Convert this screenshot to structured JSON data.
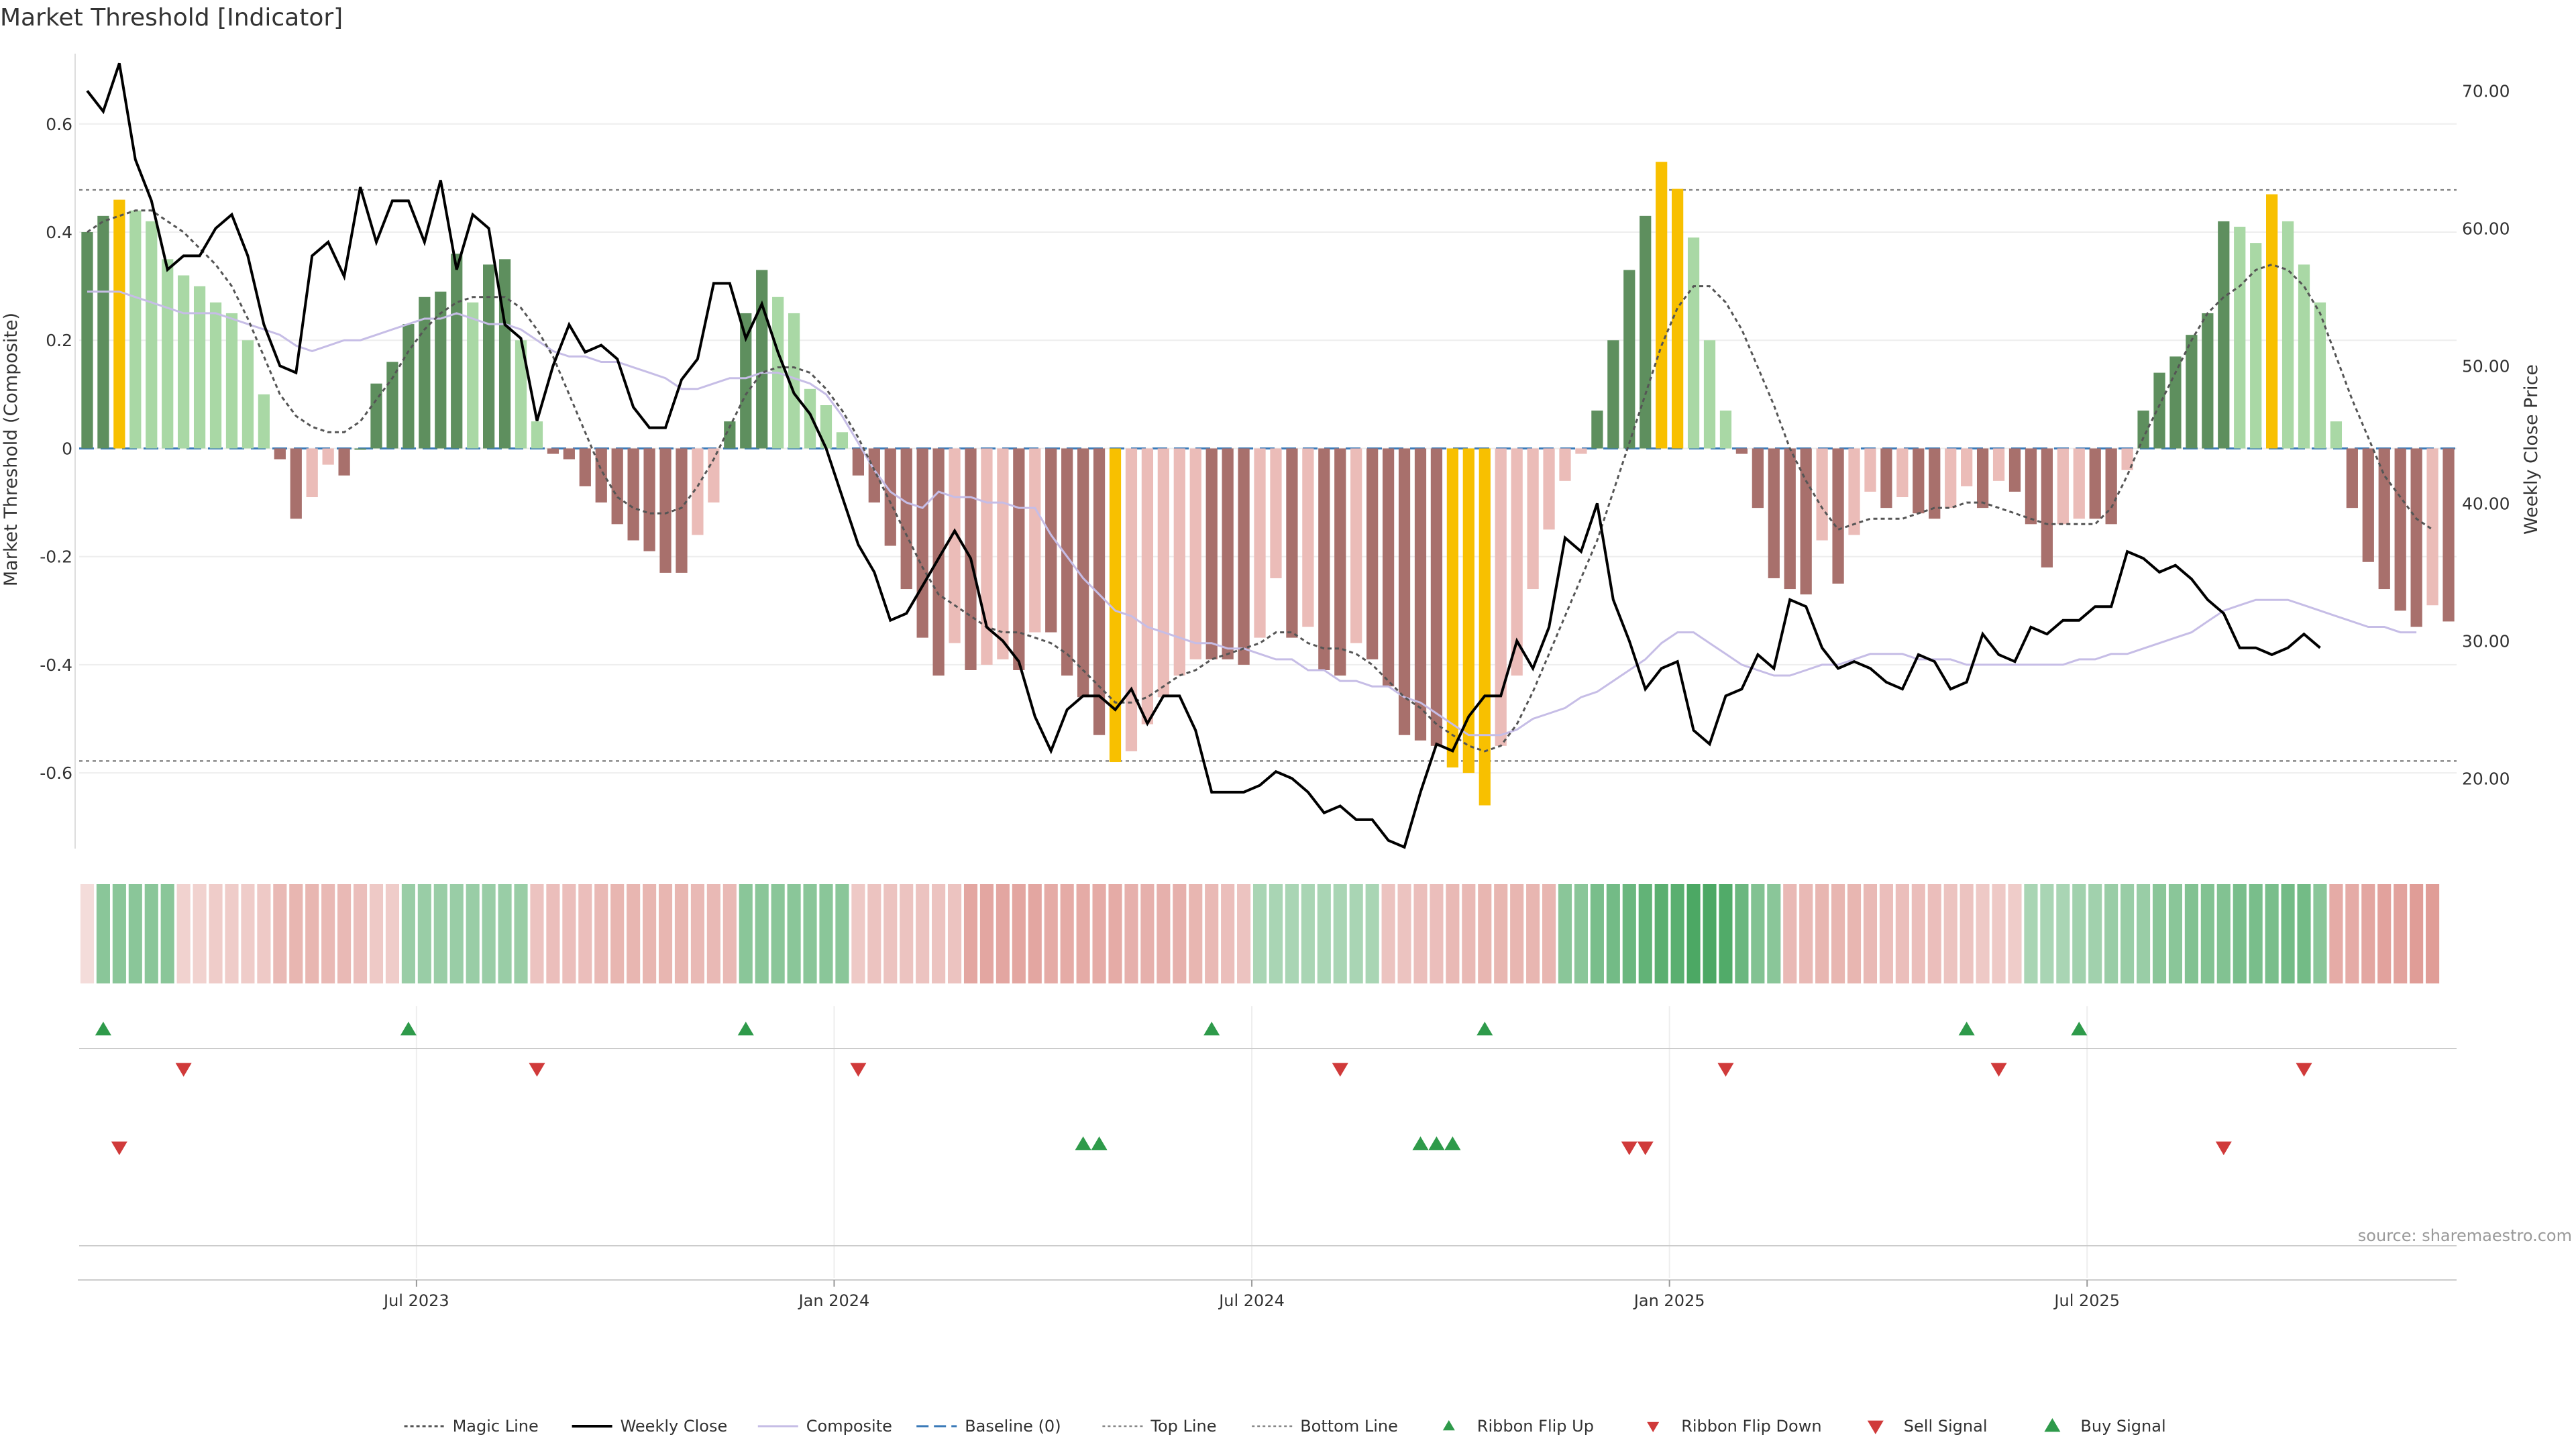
{
  "chart_data": {
    "type": "bar",
    "title": "Market Threshold [Indicator]",
    "ylabel_left": "Market Threshold (Composite)",
    "ylabel_right": "Weekly Close Price",
    "ylim_left": [
      -0.74,
      0.73
    ],
    "ylim_right": [
      14.9,
      72.7
    ],
    "left_ticks": [
      "0.6",
      "0.4",
      "0.2",
      "0",
      "-0.2",
      "-0.4",
      "-0.6"
    ],
    "left_tick_values": [
      0.6,
      0.4,
      0.2,
      0,
      -0.2,
      -0.4,
      -0.6
    ],
    "right_ticks": [
      "70.00",
      "60.00",
      "50.00",
      "40.00",
      "30.00",
      "20.00"
    ],
    "right_tick_values": [
      70,
      60,
      50,
      40,
      30,
      20
    ],
    "top_line": 0.478,
    "bottom_line": -0.578,
    "x_ticks": [
      {
        "label": "Jul 2023",
        "week": 21
      },
      {
        "label": "Jan 2024",
        "week": 47
      },
      {
        "label": "Jul 2024",
        "week": 73
      },
      {
        "label": "Jan 2025",
        "week": 99
      },
      {
        "label": "Jul 2025",
        "week": 125
      }
    ],
    "composite_bars": [
      0.4,
      0.43,
      0.46,
      0.44,
      0.42,
      0.35,
      0.32,
      0.3,
      0.27,
      0.25,
      0.2,
      0.1,
      -0.02,
      -0.13,
      -0.09,
      -0.03,
      -0.05,
      0,
      0.12,
      0.16,
      0.23,
      0.28,
      0.29,
      0.36,
      0.27,
      0.34,
      0.35,
      0.2,
      0.05,
      -0.01,
      -0.02,
      -0.07,
      -0.1,
      -0.14,
      -0.17,
      -0.19,
      -0.23,
      -0.23,
      -0.16,
      -0.1,
      0.05,
      0.25,
      0.33,
      0.28,
      0.25,
      0.11,
      0.08,
      0.03,
      -0.05,
      -0.1,
      -0.18,
      -0.26,
      -0.35,
      -0.42,
      -0.36,
      -0.41,
      -0.4,
      -0.39,
      -0.41,
      -0.34,
      -0.34,
      -0.42,
      -0.46,
      -0.53,
      -0.58,
      -0.56,
      -0.51,
      -0.46,
      -0.42,
      -0.39,
      -0.39,
      -0.39,
      -0.4,
      -0.35,
      -0.24,
      -0.35,
      -0.33,
      -0.41,
      -0.42,
      -0.36,
      -0.39,
      -0.44,
      -0.53,
      -0.54,
      -0.55,
      -0.59,
      -0.6,
      -0.66,
      -0.55,
      -0.42,
      -0.26,
      -0.15,
      -0.06,
      -0.01,
      0.07,
      0.2,
      0.33,
      0.43,
      0.53,
      0.48,
      0.39,
      0.2,
      0.07,
      -0.01,
      -0.11,
      -0.24,
      -0.26,
      -0.27,
      -0.17,
      -0.25,
      -0.16,
      -0.08,
      -0.11,
      -0.09,
      -0.12,
      -0.13,
      -0.11,
      -0.07,
      -0.11,
      -0.06,
      -0.08,
      -0.14,
      -0.22,
      -0.14,
      -0.13,
      -0.13,
      -0.14,
      -0.04,
      0.07,
      0.14,
      0.17,
      0.21,
      0.25,
      0.42,
      0.41,
      0.38,
      0.47,
      0.42,
      0.34,
      0.27,
      0.05,
      -0.11,
      -0.21,
      -0.26,
      -0.3,
      -0.33,
      -0.29,
      -0.32
    ],
    "composite_line": [
      0.29,
      0.29,
      0.29,
      0.28,
      0.27,
      0.26,
      0.25,
      0.25,
      0.25,
      0.24,
      0.23,
      0.22,
      0.21,
      0.19,
      0.18,
      0.19,
      0.2,
      0.2,
      0.21,
      0.22,
      0.23,
      0.24,
      0.24,
      0.25,
      0.24,
      0.23,
      0.23,
      0.22,
      0.2,
      0.18,
      0.17,
      0.17,
      0.16,
      0.16,
      0.15,
      0.14,
      0.13,
      0.11,
      0.11,
      0.12,
      0.13,
      0.13,
      0.14,
      0.14,
      0.13,
      0.12,
      0.1,
      0.06,
      0.01,
      -0.04,
      -0.08,
      -0.1,
      -0.11,
      -0.08,
      -0.09,
      -0.09,
      -0.1,
      -0.1,
      -0.11,
      -0.11,
      -0.16,
      -0.2,
      -0.24,
      -0.27,
      -0.3,
      -0.31,
      -0.33,
      -0.34,
      -0.35,
      -0.36,
      -0.36,
      -0.37,
      -0.37,
      -0.38,
      -0.39,
      -0.39,
      -0.41,
      -0.41,
      -0.43,
      -0.43,
      -0.44,
      -0.44,
      -0.46,
      -0.47,
      -0.49,
      -0.51,
      -0.53,
      -0.53,
      -0.53,
      -0.52,
      -0.5,
      -0.49,
      -0.48,
      -0.46,
      -0.45,
      -0.43,
      -0.41,
      -0.39,
      -0.36,
      -0.34,
      -0.34,
      -0.36,
      -0.38,
      -0.4,
      -0.41,
      -0.42,
      -0.42,
      -0.41,
      -0.4,
      -0.4,
      -0.39,
      -0.38,
      -0.38,
      -0.38,
      -0.39,
      -0.39,
      -0.39,
      -0.4,
      -0.4,
      -0.4,
      -0.4,
      -0.4,
      -0.4,
      -0.4,
      -0.39,
      -0.39,
      -0.38,
      -0.38,
      -0.37,
      -0.36,
      -0.35,
      -0.34,
      -0.32,
      -0.3,
      -0.29,
      -0.28,
      -0.28,
      -0.28,
      -0.29,
      -0.3,
      -0.31,
      -0.32,
      -0.33,
      -0.33,
      -0.34,
      -0.34
    ],
    "magic_line": [
      0.4,
      0.42,
      0.43,
      0.44,
      0.44,
      0.42,
      0.4,
      0.37,
      0.34,
      0.3,
      0.24,
      0.17,
      0.1,
      0.06,
      0.04,
      0.03,
      0.03,
      0.05,
      0.09,
      0.13,
      0.18,
      0.22,
      0.25,
      0.27,
      0.28,
      0.28,
      0.28,
      0.26,
      0.22,
      0.17,
      0.1,
      0.03,
      -0.04,
      -0.09,
      -0.11,
      -0.12,
      -0.12,
      -0.11,
      -0.07,
      -0.02,
      0.04,
      0.1,
      0.14,
      0.15,
      0.15,
      0.14,
      0.11,
      0.07,
      0.02,
      -0.04,
      -0.1,
      -0.16,
      -0.22,
      -0.27,
      -0.29,
      -0.31,
      -0.33,
      -0.34,
      -0.34,
      -0.35,
      -0.36,
      -0.38,
      -0.41,
      -0.44,
      -0.47,
      -0.47,
      -0.46,
      -0.44,
      -0.42,
      -0.41,
      -0.39,
      -0.38,
      -0.37,
      -0.36,
      -0.34,
      -0.34,
      -0.36,
      -0.37,
      -0.37,
      -0.38,
      -0.4,
      -0.43,
      -0.46,
      -0.48,
      -0.51,
      -0.53,
      -0.55,
      -0.56,
      -0.55,
      -0.51,
      -0.45,
      -0.38,
      -0.31,
      -0.24,
      -0.17,
      -0.08,
      0.01,
      0.1,
      0.19,
      0.26,
      0.3,
      0.3,
      0.27,
      0.22,
      0.15,
      0.08,
      0.0,
      -0.06,
      -0.11,
      -0.15,
      -0.14,
      -0.13,
      -0.13,
      -0.13,
      -0.12,
      -0.11,
      -0.11,
      -0.1,
      -0.1,
      -0.11,
      -0.12,
      -0.13,
      -0.14,
      -0.14,
      -0.14,
      -0.14,
      -0.11,
      -0.05,
      0.02,
      0.08,
      0.14,
      0.2,
      0.25,
      0.28,
      0.3,
      0.33,
      0.34,
      0.33,
      0.3,
      0.25,
      0.17,
      0.09,
      0.02,
      -0.05,
      -0.09,
      -0.13,
      -0.15
    ],
    "weekly_close": [
      70.0,
      68.5,
      72.0,
      65.0,
      62.0,
      57.0,
      58.0,
      58.0,
      60.0,
      61.0,
      58.0,
      53.0,
      50.0,
      49.5,
      58.0,
      59.0,
      56.5,
      63.0,
      59.0,
      62.0,
      62.0,
      59.0,
      63.5,
      57.0,
      61.0,
      60.0,
      53.0,
      52.0,
      46.0,
      50.0,
      53.0,
      51.0,
      51.5,
      50.5,
      47.0,
      45.5,
      45.5,
      49.0,
      50.5,
      56.0,
      56.0,
      52.0,
      54.5,
      51.0,
      48.0,
      46.5,
      44.0,
      40.5,
      37.0,
      35.0,
      31.5,
      32.0,
      34.0,
      36.0,
      38.0,
      36.0,
      31.0,
      30.0,
      28.5,
      24.5,
      22.0,
      25.0,
      26.0,
      26.0,
      25.0,
      26.5,
      24.0,
      26.0,
      26.0,
      23.5,
      19.0,
      19.0,
      19.0,
      19.5,
      20.5,
      20.0,
      19.0,
      17.5,
      18.0,
      17.0,
      17.0,
      15.5,
      15.0,
      19.0,
      22.5,
      22.0,
      24.5,
      26.0,
      26.0,
      30.0,
      28.0,
      31.0,
      37.5,
      36.5,
      40.0,
      33.0,
      30.0,
      26.5,
      28.0,
      28.5,
      23.5,
      22.5,
      26.0,
      26.5,
      29.0,
      28.0,
      33.0,
      32.5,
      29.5,
      28.0,
      28.5,
      28.0,
      27.0,
      26.5,
      29.0,
      28.5,
      26.5,
      27.0,
      30.5,
      29.0,
      28.5,
      31.0,
      30.5,
      31.5,
      31.5,
      32.5,
      32.5,
      36.5,
      36.0,
      35.0,
      35.5,
      34.5,
      33.0,
      32.0,
      29.5,
      29.5,
      29.0,
      29.5,
      30.5,
      29.5
    ],
    "ribbon": [
      -0.15,
      0.55,
      0.55,
      0.55,
      0.55,
      0.55,
      -0.25,
      -0.25,
      -0.3,
      -0.3,
      -0.3,
      -0.35,
      -0.5,
      -0.55,
      -0.55,
      -0.5,
      -0.5,
      -0.45,
      -0.35,
      -0.3,
      0.45,
      0.45,
      0.45,
      0.45,
      0.45,
      0.45,
      0.45,
      0.45,
      -0.4,
      -0.45,
      -0.45,
      -0.45,
      -0.5,
      -0.55,
      -0.55,
      -0.55,
      -0.55,
      -0.55,
      -0.5,
      -0.5,
      -0.5,
      0.55,
      0.55,
      0.55,
      0.55,
      0.55,
      0.55,
      0.55,
      -0.35,
      -0.4,
      -0.4,
      -0.4,
      -0.4,
      -0.4,
      -0.4,
      -0.7,
      -0.7,
      -0.7,
      -0.7,
      -0.7,
      -0.65,
      -0.65,
      -0.65,
      -0.65,
      -0.65,
      -0.6,
      -0.6,
      -0.6,
      -0.6,
      -0.55,
      -0.5,
      -0.45,
      -0.4,
      0.35,
      0.35,
      0.35,
      0.35,
      0.35,
      0.35,
      0.35,
      0.35,
      -0.4,
      -0.4,
      -0.45,
      -0.45,
      -0.5,
      -0.5,
      -0.55,
      -0.55,
      -0.55,
      -0.55,
      -0.55,
      0.55,
      0.55,
      0.65,
      0.7,
      0.75,
      0.8,
      0.85,
      0.85,
      0.95,
      0.95,
      0.9,
      0.75,
      0.6,
      0.55,
      -0.5,
      -0.5,
      -0.55,
      -0.55,
      -0.55,
      -0.5,
      -0.45,
      -0.45,
      -0.45,
      -0.45,
      -0.4,
      -0.4,
      -0.35,
      -0.35,
      -0.3,
      0.35,
      0.35,
      0.35,
      0.4,
      0.4,
      0.45,
      0.45,
      0.45,
      0.55,
      0.55,
      0.6,
      0.6,
      0.6,
      0.65,
      0.65,
      0.65,
      0.7,
      0.7,
      0.55,
      -0.65,
      -0.65,
      -0.7,
      -0.75,
      -0.75,
      -0.8,
      -0.8
    ],
    "ribbon_flip_up": [
      1,
      20,
      41,
      70,
      87,
      117,
      124
    ],
    "ribbon_flip_down": [
      6,
      28,
      48,
      78,
      102,
      119,
      138
    ],
    "sell_signals": [
      2,
      96,
      97,
      133
    ],
    "buy_signals": [
      62,
      63,
      83,
      84,
      85
    ],
    "legend": [
      {
        "key": "magic",
        "label": "Magic Line"
      },
      {
        "key": "close",
        "label": "Weekly Close"
      },
      {
        "key": "composite",
        "label": "Composite"
      },
      {
        "key": "baseline",
        "label": "Baseline (0)"
      },
      {
        "key": "top",
        "label": "Top Line"
      },
      {
        "key": "bottom",
        "label": "Bottom Line"
      },
      {
        "key": "flip_up",
        "label": "Ribbon Flip Up"
      },
      {
        "key": "flip_down",
        "label": "Ribbon Flip Down"
      },
      {
        "key": "sell",
        "label": "Sell Signal"
      },
      {
        "key": "buy",
        "label": "Buy Signal"
      }
    ],
    "source_note": "source: sharemaestro.com"
  },
  "colors": {
    "bar_pos_strong": "#5e8f5e",
    "bar_pos_light": "#a9d8a5",
    "bar_neg_strong": "#a8706c",
    "bar_neg_light": "#ebbcb8",
    "bar_extreme": "#f8c000",
    "close_line": "#000000",
    "composite_line": "#c6bde6",
    "magic_line": "#555555",
    "baseline": "#3a7ab8",
    "threshold_lines": "#888888",
    "flip_up": "#2e9a4a",
    "flip_down": "#d03a3a",
    "grid": "#eeeeee",
    "text": "#333333"
  }
}
